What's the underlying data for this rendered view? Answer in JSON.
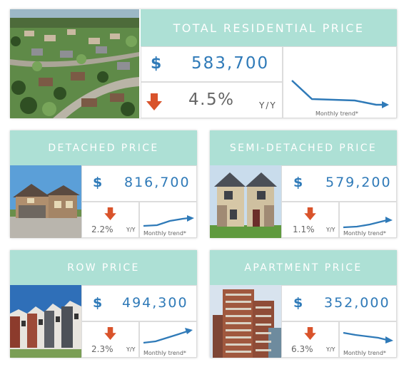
{
  "colors": {
    "header": "#ade0d5",
    "accent": "#2f7ab8",
    "down": "#d9532b"
  },
  "currency_symbol": "$",
  "total": {
    "title": "TOTAL RESIDENTIAL PRICE",
    "price": "583,700",
    "change": "4.5%",
    "yy": "Y/Y",
    "trend_label": "Monthly trend*",
    "direction": "down"
  },
  "cards": [
    {
      "title": "DETACHED PRICE",
      "price": "816,700",
      "change": "2.2%",
      "yy": "Y/Y",
      "trend_label": "Monthly trend*",
      "direction": "down"
    },
    {
      "title": "SEMI-DETACHED PRICE",
      "price": "579,200",
      "change": "1.1%",
      "yy": "Y/Y",
      "trend_label": "Monthly trend*",
      "direction": "down"
    },
    {
      "title": "ROW PRICE",
      "price": "494,300",
      "change": "2.3%",
      "yy": "Y/Y",
      "trend_label": "Monthly trend*",
      "direction": "down"
    },
    {
      "title": "APARTMENT PRICE",
      "price": "352,000",
      "change": "6.3%",
      "yy": "Y/Y",
      "trend_label": "Monthly trend*",
      "direction": "down"
    }
  ]
}
